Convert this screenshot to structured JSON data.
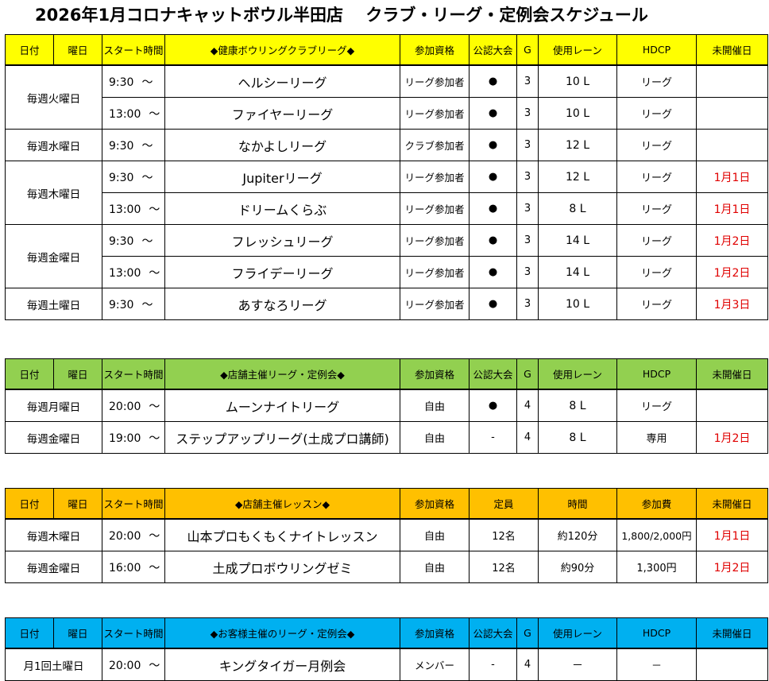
{
  "title": "2026年1月コロナキャットボウル半田店　 クラブ・リーグ・定例会スケジュール",
  "colors": {
    "club_header": "#ffff00",
    "store_league_header": "#92d050",
    "lesson_header": "#ffc000",
    "customer_header": "#00b0f0",
    "unopened_text": "#e00000"
  },
  "club_table": {
    "headers": [
      "日付",
      "曜日",
      "スタート時間",
      "◆健康ボウリングクラブリーグ◆",
      "参加資格",
      "公認大会",
      "G",
      "使用レーン",
      "HDCP",
      "未開催日"
    ],
    "groups": [
      {
        "day": "毎週火曜日",
        "rows": [
          {
            "time": "9:30",
            "tilde": "～",
            "name": "ヘルシーリーグ",
            "qual": "リーグ参加者",
            "official": "●",
            "g": "3",
            "lanes": "10 L",
            "hdcp": "リーグ",
            "unopened": ""
          },
          {
            "time": "13:00",
            "tilde": "～",
            "name": "ファイヤーリーグ",
            "qual": "リーグ参加者",
            "official": "●",
            "g": "3",
            "lanes": "10 L",
            "hdcp": "リーグ",
            "unopened": ""
          }
        ]
      },
      {
        "day": "毎週水曜日",
        "rows": [
          {
            "time": "9:30",
            "tilde": "～",
            "name": "なかよしリーグ",
            "qual": "クラブ参加者",
            "official": "●",
            "g": "3",
            "lanes": "12 L",
            "hdcp": "リーグ",
            "unopened": ""
          }
        ]
      },
      {
        "day": "毎週木曜日",
        "rows": [
          {
            "time": "9:30",
            "tilde": "～",
            "name": "Jupiterリーグ",
            "qual": "リーグ参加者",
            "official": "●",
            "g": "3",
            "lanes": "12 L",
            "hdcp": "リーグ",
            "unopened": "1月1日"
          },
          {
            "time": "13:00",
            "tilde": "～",
            "name": "ドリームくらぶ",
            "qual": "リーグ参加者",
            "official": "●",
            "g": "3",
            "lanes": "8 L",
            "hdcp": "リーグ",
            "unopened": "1月1日"
          }
        ]
      },
      {
        "day": "毎週金曜日",
        "rows": [
          {
            "time": "9:30",
            "tilde": "～",
            "name": "フレッシュリーグ",
            "qual": "リーグ参加者",
            "official": "●",
            "g": "3",
            "lanes": "14 L",
            "hdcp": "リーグ",
            "unopened": "1月2日"
          },
          {
            "time": "13:00",
            "tilde": "～",
            "name": "フライデーリーグ",
            "qual": "リーグ参加者",
            "official": "●",
            "g": "3",
            "lanes": "14 L",
            "hdcp": "リーグ",
            "unopened": "1月2日"
          }
        ]
      },
      {
        "day": "毎週土曜日",
        "rows": [
          {
            "time": "9:30",
            "tilde": "～",
            "name": "あすなろリーグ",
            "qual": "リーグ参加者",
            "official": "●",
            "g": "3",
            "lanes": "10 L",
            "hdcp": "リーグ",
            "unopened": "1月3日"
          }
        ]
      }
    ]
  },
  "store_league_table": {
    "headers": [
      "日付",
      "曜日",
      "スタート時間",
      "◆店舗主催リーグ・定例会◆",
      "参加資格",
      "公認大会",
      "G",
      "使用レーン",
      "HDCP",
      "未開催日"
    ],
    "rows": [
      {
        "day": "毎週月曜日",
        "time": "20:00",
        "tilde": "～",
        "name": "ムーンナイトリーグ",
        "qual": "自由",
        "official": "●",
        "g": "4",
        "lanes": "8 L",
        "hdcp": "リーグ",
        "unopened": ""
      },
      {
        "day": "毎週金曜日",
        "time": "19:00",
        "tilde": "～",
        "name": "ステップアップリーグ(土成プロ講師)",
        "qual": "自由",
        "official": "-",
        "g": "4",
        "lanes": "8 L",
        "hdcp": "専用",
        "unopened": "1月2日"
      }
    ]
  },
  "lesson_table": {
    "headers": [
      "日付",
      "曜日",
      "スタート時間",
      "◆店舗主催レッスン◆",
      "参加資格",
      "定員",
      "時間",
      "参加費",
      "未開催日"
    ],
    "rows": [
      {
        "day": "毎週木曜日",
        "time": "20:00",
        "tilde": "～",
        "name": "山本プロもくもくナイトレッスン",
        "qual": "自由",
        "capacity": "12名",
        "duration": "約120分",
        "fee": "1,800/2,000円",
        "unopened": "1月1日"
      },
      {
        "day": "毎週金曜日",
        "time": "16:00",
        "tilde": "～",
        "name": "土成プロボウリングゼミ",
        "qual": "自由",
        "capacity": "12名",
        "duration": "約90分",
        "fee": "1,300円",
        "unopened": "1月2日"
      }
    ]
  },
  "customer_table": {
    "headers": [
      "日付",
      "曜日",
      "スタート時間",
      "◆お客様主催のリーグ・定例会◆",
      "参加資格",
      "公認大会",
      "G",
      "使用レーン",
      "HDCP",
      "未開催日"
    ],
    "rows": [
      {
        "day": "月1回土曜日",
        "time": "20:00",
        "tilde": "～",
        "name": "キングタイガー月例会",
        "qual": "メンバー",
        "official": "-",
        "g": "4",
        "lanes": "－",
        "hdcp": "－",
        "unopened": ""
      }
    ]
  }
}
